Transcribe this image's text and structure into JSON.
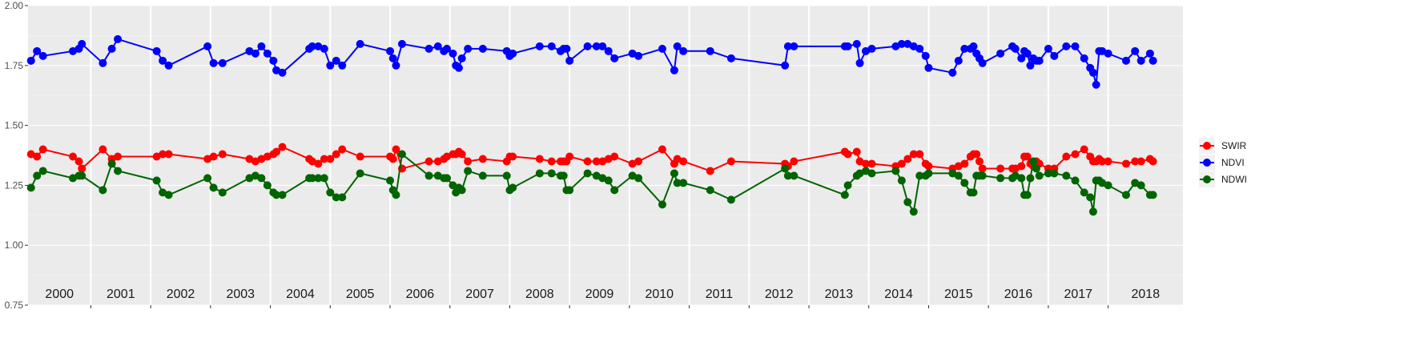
{
  "chart_data": {
    "type": "line",
    "title": "",
    "xlabel": "",
    "ylabel": "",
    "ylim": [
      0.75,
      2.0
    ],
    "y_ticks": [
      "0.75",
      "1.00",
      "1.25",
      "1.50",
      "1.75",
      "2.00"
    ],
    "x_domain": [
      1999.95,
      2019.25
    ],
    "grid": true,
    "legend_position": "right",
    "year_labels": [
      "2000",
      "2001",
      "2002",
      "2003",
      "2004",
      "2005",
      "2006",
      "2007",
      "2008",
      "2009",
      "2010",
      "2011",
      "2012",
      "2013",
      "2014",
      "2015",
      "2016",
      "2017",
      "2018"
    ],
    "year_boundaries": [
      2001,
      2002,
      2003,
      2004,
      2005,
      2006,
      2007,
      2008,
      2009,
      2010,
      2011,
      2012,
      2013,
      2014,
      2015,
      2016,
      2017,
      2018
    ],
    "series": [
      {
        "name": "SWIR",
        "color": "#ff0000",
        "x": [
          2000.0,
          2000.1,
          2000.2,
          2000.7,
          2000.8,
          2000.85,
          2001.2,
          2001.35,
          2001.45,
          2002.1,
          2002.2,
          2002.3,
          2002.95,
          2003.05,
          2003.2,
          2003.65,
          2003.75,
          2003.85,
          2003.95,
          2004.05,
          2004.1,
          2004.2,
          2004.65,
          2004.7,
          2004.8,
          2004.9,
          2005.0,
          2005.1,
          2005.2,
          2005.5,
          2006.0,
          2006.05,
          2006.1,
          2006.2,
          2006.65,
          2006.8,
          2006.9,
          2006.95,
          2007.05,
          2007.1,
          2007.15,
          2007.2,
          2007.3,
          2007.55,
          2007.95,
          2008.0,
          2008.05,
          2008.5,
          2008.7,
          2008.85,
          2008.9,
          2008.95,
          2009.0,
          2009.3,
          2009.45,
          2009.55,
          2009.65,
          2009.75,
          2010.05,
          2010.15,
          2010.55,
          2010.75,
          2010.8,
          2010.9,
          2011.35,
          2011.7,
          2012.6,
          2012.65,
          2012.75,
          2013.6,
          2013.65,
          2013.8,
          2013.85,
          2013.95,
          2014.05,
          2014.45,
          2014.55,
          2014.65,
          2014.75,
          2014.85,
          2014.95,
          2015.0,
          2015.4,
          2015.5,
          2015.6,
          2015.7,
          2015.75,
          2015.8,
          2015.85,
          2015.9,
          2016.2,
          2016.4,
          2016.45,
          2016.55,
          2016.6,
          2016.65,
          2016.7,
          2016.75,
          2016.8,
          2016.85,
          2017.0,
          2017.1,
          2017.3,
          2017.45,
          2017.6,
          2017.7,
          2017.75,
          2017.8,
          2017.85,
          2017.9,
          2018.0,
          2018.3,
          2018.45,
          2018.55,
          2018.7,
          2018.75
        ],
        "y": [
          1.38,
          1.37,
          1.4,
          1.37,
          1.35,
          1.32,
          1.4,
          1.36,
          1.37,
          1.37,
          1.38,
          1.38,
          1.36,
          1.37,
          1.38,
          1.36,
          1.35,
          1.36,
          1.37,
          1.38,
          1.39,
          1.41,
          1.36,
          1.35,
          1.34,
          1.36,
          1.36,
          1.38,
          1.4,
          1.37,
          1.37,
          1.36,
          1.4,
          1.32,
          1.35,
          1.35,
          1.36,
          1.37,
          1.38,
          1.38,
          1.39,
          1.38,
          1.35,
          1.36,
          1.35,
          1.37,
          1.37,
          1.36,
          1.35,
          1.35,
          1.35,
          1.35,
          1.37,
          1.35,
          1.35,
          1.35,
          1.36,
          1.37,
          1.34,
          1.35,
          1.4,
          1.34,
          1.36,
          1.35,
          1.31,
          1.35,
          1.34,
          1.33,
          1.35,
          1.39,
          1.38,
          1.39,
          1.35,
          1.34,
          1.34,
          1.33,
          1.34,
          1.36,
          1.38,
          1.38,
          1.34,
          1.33,
          1.32,
          1.33,
          1.34,
          1.37,
          1.38,
          1.38,
          1.35,
          1.32,
          1.32,
          1.32,
          1.32,
          1.33,
          1.37,
          1.37,
          1.34,
          1.33,
          1.35,
          1.34,
          1.32,
          1.32,
          1.37,
          1.38,
          1.4,
          1.37,
          1.35,
          1.35,
          1.36,
          1.35,
          1.35,
          1.34,
          1.35,
          1.35,
          1.36,
          1.35
        ],
        "x_order_note": ""
      },
      {
        "name": "NDVI",
        "color": "#0000ff",
        "x": [
          2000.0,
          2000.1,
          2000.2,
          2000.7,
          2000.8,
          2000.85,
          2001.2,
          2001.35,
          2001.45,
          2002.1,
          2002.2,
          2002.3,
          2002.95,
          2003.05,
          2003.2,
          2003.65,
          2003.75,
          2003.85,
          2003.95,
          2004.05,
          2004.1,
          2004.2,
          2004.65,
          2004.7,
          2004.8,
          2004.9,
          2005.0,
          2005.1,
          2005.2,
          2005.5,
          2006.0,
          2006.05,
          2006.1,
          2006.2,
          2006.65,
          2006.8,
          2006.9,
          2006.95,
          2007.05,
          2007.1,
          2007.15,
          2007.2,
          2007.3,
          2007.55,
          2007.95,
          2008.0,
          2008.05,
          2008.5,
          2008.7,
          2008.85,
          2008.9,
          2008.95,
          2009.0,
          2009.3,
          2009.45,
          2009.55,
          2009.65,
          2009.75,
          2010.05,
          2010.15,
          2010.55,
          2010.75,
          2010.8,
          2010.9,
          2011.35,
          2011.7,
          2012.6,
          2012.65,
          2012.75,
          2013.6,
          2013.65,
          2013.8,
          2013.85,
          2013.95,
          2014.05,
          2014.45,
          2014.55,
          2014.65,
          2014.75,
          2014.85,
          2014.95,
          2015.0,
          2015.4,
          2015.5,
          2015.6,
          2015.7,
          2015.75,
          2015.8,
          2015.85,
          2015.9,
          2016.2,
          2016.4,
          2016.45,
          2016.55,
          2016.6,
          2016.65,
          2016.7,
          2016.75,
          2016.8,
          2016.85,
          2017.0,
          2017.1,
          2017.3,
          2017.45,
          2017.6,
          2017.7,
          2017.75,
          2017.8,
          2017.85,
          2017.9,
          2018.0,
          2018.3,
          2018.45,
          2018.55,
          2018.7,
          2018.75
        ],
        "y": [
          1.77,
          1.81,
          1.79,
          1.81,
          1.82,
          1.84,
          1.76,
          1.82,
          1.86,
          1.81,
          1.77,
          1.75,
          1.83,
          1.76,
          1.76,
          1.81,
          1.8,
          1.83,
          1.8,
          1.77,
          1.73,
          1.72,
          1.82,
          1.83,
          1.83,
          1.82,
          1.75,
          1.77,
          1.75,
          1.84,
          1.81,
          1.78,
          1.75,
          1.84,
          1.82,
          1.83,
          1.81,
          1.82,
          1.8,
          1.75,
          1.74,
          1.78,
          1.82,
          1.82,
          1.81,
          1.79,
          1.8,
          1.83,
          1.83,
          1.81,
          1.82,
          1.82,
          1.77,
          1.83,
          1.83,
          1.83,
          1.81,
          1.78,
          1.8,
          1.79,
          1.82,
          1.73,
          1.83,
          1.81,
          1.81,
          1.78,
          1.75,
          1.83,
          1.83,
          1.83,
          1.83,
          1.84,
          1.76,
          1.81,
          1.82,
          1.83,
          1.84,
          1.84,
          1.83,
          1.82,
          1.79,
          1.74,
          1.72,
          1.77,
          1.82,
          1.82,
          1.83,
          1.8,
          1.78,
          1.76,
          1.8,
          1.83,
          1.82,
          1.78,
          1.81,
          1.8,
          1.75,
          1.78,
          1.77,
          1.77,
          1.82,
          1.79,
          1.83,
          1.83,
          1.78,
          1.74,
          1.72,
          1.67,
          1.81,
          1.81,
          1.8,
          1.77,
          1.81,
          1.77,
          1.8,
          1.77
        ],
        "x_order_note": ""
      },
      {
        "name": "NDWI",
        "color": "#006400",
        "x": [
          2000.0,
          2000.1,
          2000.2,
          2000.7,
          2000.8,
          2000.85,
          2001.2,
          2001.35,
          2001.45,
          2002.1,
          2002.2,
          2002.3,
          2002.95,
          2003.05,
          2003.2,
          2003.65,
          2003.75,
          2003.85,
          2003.95,
          2004.05,
          2004.1,
          2004.2,
          2004.65,
          2004.7,
          2004.8,
          2004.9,
          2005.0,
          2005.1,
          2005.2,
          2005.5,
          2006.0,
          2006.05,
          2006.1,
          2006.2,
          2006.65,
          2006.8,
          2006.9,
          2006.95,
          2007.05,
          2007.1,
          2007.15,
          2007.2,
          2007.3,
          2007.55,
          2007.95,
          2008.0,
          2008.05,
          2008.5,
          2008.7,
          2008.85,
          2008.9,
          2008.95,
          2009.0,
          2009.3,
          2009.45,
          2009.55,
          2009.65,
          2009.75,
          2010.05,
          2010.15,
          2010.55,
          2010.75,
          2010.8,
          2010.9,
          2011.35,
          2011.7,
          2012.6,
          2012.65,
          2012.75,
          2013.6,
          2013.65,
          2013.8,
          2013.85,
          2013.95,
          2014.05,
          2014.45,
          2014.55,
          2014.65,
          2014.75,
          2014.85,
          2014.95,
          2015.0,
          2015.4,
          2015.5,
          2015.6,
          2015.7,
          2015.75,
          2015.8,
          2015.85,
          2015.9,
          2016.2,
          2016.4,
          2016.45,
          2016.55,
          2016.6,
          2016.65,
          2016.7,
          2016.75,
          2016.8,
          2016.85,
          2017.0,
          2017.1,
          2017.3,
          2017.45,
          2017.6,
          2017.7,
          2017.75,
          2017.8,
          2017.85,
          2017.9,
          2018.0,
          2018.3,
          2018.45,
          2018.55,
          2018.7,
          2018.75
        ],
        "y": [
          1.24,
          1.29,
          1.31,
          1.28,
          1.29,
          1.29,
          1.23,
          1.34,
          1.31,
          1.27,
          1.22,
          1.21,
          1.28,
          1.24,
          1.22,
          1.28,
          1.29,
          1.28,
          1.25,
          1.22,
          1.21,
          1.21,
          1.28,
          1.28,
          1.28,
          1.28,
          1.22,
          1.2,
          1.2,
          1.3,
          1.27,
          1.23,
          1.21,
          1.38,
          1.29,
          1.29,
          1.28,
          1.28,
          1.25,
          1.22,
          1.24,
          1.23,
          1.31,
          1.29,
          1.29,
          1.23,
          1.24,
          1.3,
          1.3,
          1.29,
          1.29,
          1.23,
          1.23,
          1.3,
          1.29,
          1.28,
          1.27,
          1.23,
          1.29,
          1.28,
          1.17,
          1.3,
          1.26,
          1.26,
          1.23,
          1.19,
          1.32,
          1.29,
          1.29,
          1.21,
          1.25,
          1.29,
          1.3,
          1.31,
          1.3,
          1.31,
          1.27,
          1.18,
          1.14,
          1.29,
          1.29,
          1.3,
          1.3,
          1.29,
          1.26,
          1.22,
          1.22,
          1.29,
          1.29,
          1.29,
          1.28,
          1.28,
          1.29,
          1.28,
          1.21,
          1.21,
          1.28,
          1.35,
          1.32,
          1.29,
          1.3,
          1.3,
          1.29,
          1.27,
          1.22,
          1.2,
          1.14,
          1.27,
          1.27,
          1.26,
          1.25,
          1.21,
          1.26,
          1.25,
          1.21,
          1.21
        ],
        "x_order_note": ""
      }
    ]
  },
  "legend": {
    "items": [
      {
        "name": "SWIR",
        "color": "#ff0000"
      },
      {
        "name": "NDVI",
        "color": "#0000ff"
      },
      {
        "name": "NDWI",
        "color": "#006400"
      }
    ]
  }
}
